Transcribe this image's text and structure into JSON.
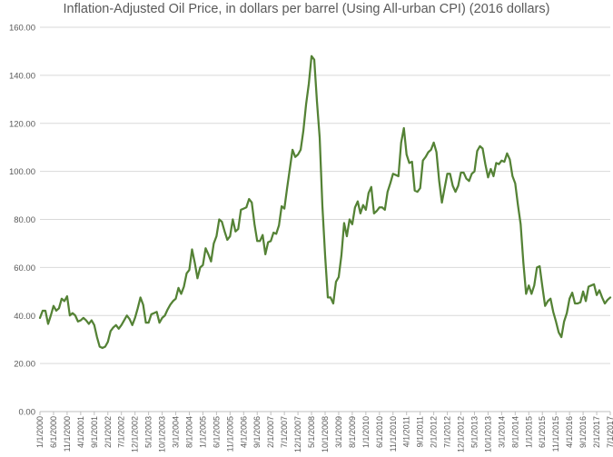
{
  "chart_data": {
    "type": "line",
    "title": "Inflation-Adjusted Oil Price, in dollars per barrel (Using All-urban CPI) (2016 dollars)",
    "xlabel": "",
    "ylabel": "",
    "ylim": [
      0,
      160
    ],
    "y_ticks": [
      "0.00",
      "20.00",
      "40.00",
      "60.00",
      "80.00",
      "100.00",
      "120.00",
      "140.00",
      "160.00"
    ],
    "grid": true,
    "legend": "none",
    "x_tick_labels": [
      "1/1/2000",
      "6/1/2000",
      "11/1/2000",
      "4/1/2001",
      "9/1/2001",
      "2/1/2002",
      "7/1/2002",
      "12/1/2002",
      "5/1/2003",
      "10/1/2003",
      "3/1/2004",
      "8/1/2004",
      "1/1/2005",
      "6/1/2005",
      "11/1/2005",
      "4/1/2006",
      "9/1/2006",
      "2/1/2007",
      "7/1/2007",
      "12/1/2007",
      "5/1/2008",
      "10/1/2008",
      "3/1/2009",
      "8/1/2009",
      "1/1/2010",
      "6/1/2010",
      "11/1/2010",
      "4/1/2011",
      "9/1/2011",
      "2/1/2012",
      "7/1/2012",
      "12/1/2012",
      "5/1/2013",
      "10/1/2013",
      "3/1/2014",
      "8/1/2014",
      "1/1/2015",
      "6/1/2015",
      "11/1/2015",
      "4/1/2016",
      "9/1/2016",
      "2/1/2017",
      "7/1/2017"
    ],
    "x_start": "1/1/2000",
    "x_step": "1 month",
    "color": "#548235",
    "series": [
      {
        "values": [
          39,
          42,
          42,
          36.5,
          40,
          44,
          42,
          43,
          47,
          46,
          48,
          40,
          41,
          40,
          37.5,
          38,
          39,
          38,
          36.5,
          38,
          36,
          31,
          27,
          26.5,
          27,
          29,
          33.5,
          35,
          36,
          34.5,
          36,
          38,
          40,
          38.5,
          36,
          39,
          43,
          47.5,
          44.5,
          37,
          37,
          40.5,
          41,
          41.5,
          37,
          39,
          40,
          42.5,
          44.5,
          46,
          47,
          51.5,
          49,
          52,
          57.5,
          59,
          67.5,
          62,
          55.5,
          60,
          61,
          68,
          65.5,
          62.5,
          70,
          73,
          80,
          79,
          75,
          71.5,
          73,
          80,
          75,
          76,
          84,
          84.5,
          85,
          88.5,
          87,
          78,
          71,
          71,
          73.5,
          65.5,
          70.5,
          71,
          74.5,
          74,
          77.5,
          85.5,
          84.5,
          93,
          101,
          109,
          106,
          107,
          109,
          117,
          128,
          136.5,
          148,
          146.5,
          129,
          114,
          85.5,
          65,
          47.5,
          47.5,
          45,
          54,
          56,
          65,
          78.5,
          73,
          80,
          78,
          85,
          87.5,
          82.5,
          86,
          84,
          91,
          93.5,
          82.5,
          83.5,
          85,
          85,
          84,
          91.5,
          95,
          99,
          98.5,
          98,
          112,
          118,
          107,
          103.5,
          104,
          92,
          91.5,
          93,
          104.5,
          106,
          108,
          109,
          112,
          108,
          96,
          87,
          93,
          99,
          99,
          94,
          91.5,
          94,
          99.5,
          99.5,
          97,
          96,
          99,
          100,
          108.5,
          110.5,
          109.5,
          103,
          97.5,
          101,
          98,
          103.5,
          103,
          104.5,
          104,
          107.5,
          105,
          98,
          95,
          86,
          78,
          62,
          49,
          52.5,
          49,
          52.5,
          60,
          60.5,
          52,
          44,
          46,
          47,
          41.5,
          37.5,
          33,
          31,
          37.5,
          41,
          47,
          49.5,
          45,
          45,
          45.5,
          50,
          46,
          52,
          52.5,
          53,
          48.5,
          50.5,
          47.5,
          45,
          46.5,
          47.5
        ]
      }
    ]
  }
}
